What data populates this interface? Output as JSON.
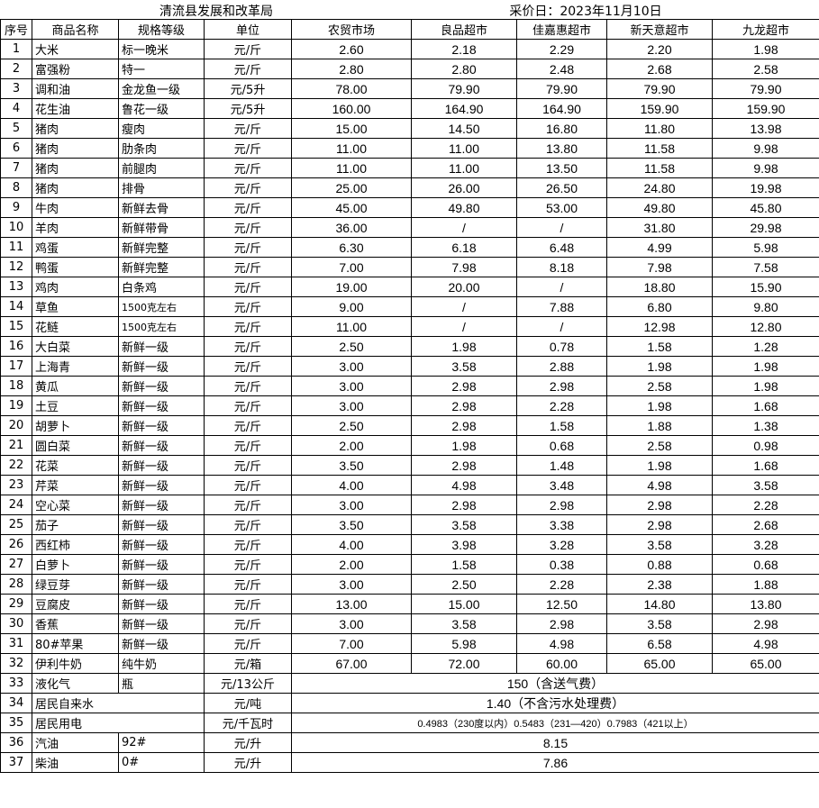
{
  "title": "清流县发展和改革局",
  "date_label": "采价日：2023年11月10日",
  "headers": [
    "序号",
    "商品名称",
    "规格等级",
    "单位",
    "农贸市场",
    "良品超市",
    "佳嘉惠超市",
    "新天意超市",
    "九龙超市"
  ],
  "rows": [
    [
      "1",
      "大米",
      "标一晚米",
      "元/斤",
      "2.60",
      "2.18",
      "2.29",
      "2.20",
      "1.98"
    ],
    [
      "2",
      "富强粉",
      "特一",
      "元/斤",
      "2.80",
      "2.80",
      "2.48",
      "2.68",
      "2.58"
    ],
    [
      "3",
      "调和油",
      "金龙鱼一级",
      "元/5升",
      "78.00",
      "79.90",
      "79.90",
      "79.90",
      "79.90"
    ],
    [
      "4",
      "花生油",
      "鲁花一级",
      "元/5升",
      "160.00",
      "164.90",
      "164.90",
      "159.90",
      "159.90"
    ],
    [
      "5",
      "猪肉",
      "瘦肉",
      "元/斤",
      "15.00",
      "14.50",
      "16.80",
      "11.80",
      "13.98"
    ],
    [
      "6",
      "猪肉",
      "肋条肉",
      "元/斤",
      "11.00",
      "11.00",
      "13.80",
      "11.58",
      "9.98"
    ],
    [
      "7",
      "猪肉",
      "前腿肉",
      "元/斤",
      "11.00",
      "11.00",
      "13.50",
      "11.58",
      "9.98"
    ],
    [
      "8",
      "猪肉",
      "排骨",
      "元/斤",
      "25.00",
      "26.00",
      "26.50",
      "24.80",
      "19.98"
    ],
    [
      "9",
      "牛肉",
      "新鲜去骨",
      "元/斤",
      "45.00",
      "49.80",
      "53.00",
      "49.80",
      "45.80"
    ],
    [
      "10",
      "羊肉",
      "新鲜带骨",
      "元/斤",
      "36.00",
      "/",
      "/",
      "31.80",
      "29.98"
    ],
    [
      "11",
      "鸡蛋",
      "新鲜完整",
      "元/斤",
      "6.30",
      "6.18",
      "6.48",
      "4.99",
      "5.98"
    ],
    [
      "12",
      "鸭蛋",
      "新鲜完整",
      "元/斤",
      "7.00",
      "7.98",
      "8.18",
      "7.98",
      "7.58"
    ],
    [
      "13",
      "鸡肉",
      "白条鸡",
      "元/斤",
      "19.00",
      "20.00",
      "/",
      "18.80",
      "15.90"
    ],
    [
      "14",
      "草鱼",
      "1500克左右",
      "元/斤",
      "9.00",
      "/",
      "7.88",
      "6.80",
      "9.80"
    ],
    [
      "15",
      "花鲢",
      "1500克左右",
      "元/斤",
      "11.00",
      "/",
      "/",
      "12.98",
      "12.80"
    ],
    [
      "16",
      "大白菜",
      "新鲜一级",
      "元/斤",
      "2.50",
      "1.98",
      "0.78",
      "1.58",
      "1.28"
    ],
    [
      "17",
      "上海青",
      "新鲜一级",
      "元/斤",
      "3.00",
      "3.58",
      "2.88",
      "1.98",
      "1.98"
    ],
    [
      "18",
      "黄瓜",
      "新鲜一级",
      "元/斤",
      "3.00",
      "2.98",
      "2.98",
      "2.58",
      "1.98"
    ],
    [
      "19",
      "土豆",
      "新鲜一级",
      "元/斤",
      "3.00",
      "2.98",
      "2.28",
      "1.98",
      "1.68"
    ],
    [
      "20",
      "胡萝卜",
      "新鲜一级",
      "元/斤",
      "2.50",
      "2.98",
      "1.58",
      "1.88",
      "1.38"
    ],
    [
      "21",
      "圆白菜",
      "新鲜一级",
      "元/斤",
      "2.00",
      "1.98",
      "0.68",
      "2.58",
      "0.98"
    ],
    [
      "22",
      "花菜",
      "新鲜一级",
      "元/斤",
      "3.50",
      "2.98",
      "1.48",
      "1.98",
      "1.68"
    ],
    [
      "23",
      "芹菜",
      "新鲜一级",
      "元/斤",
      "4.00",
      "4.98",
      "3.48",
      "4.98",
      "3.58"
    ],
    [
      "24",
      "空心菜",
      "新鲜一级",
      "元/斤",
      "3.00",
      "2.98",
      "2.98",
      "2.98",
      "2.28"
    ],
    [
      "25",
      "茄子",
      "新鲜一级",
      "元/斤",
      "3.50",
      "3.58",
      "3.38",
      "2.98",
      "2.68"
    ],
    [
      "26",
      "西红柿",
      "新鲜一级",
      "元/斤",
      "4.00",
      "3.98",
      "3.28",
      "3.58",
      "3.28"
    ],
    [
      "27",
      "白萝卜",
      "新鲜一级",
      "元/斤",
      "2.00",
      "1.58",
      "0.38",
      "0.88",
      "0.68"
    ],
    [
      "28",
      "绿豆芽",
      "新鲜一级",
      "元/斤",
      "3.00",
      "2.50",
      "2.28",
      "2.38",
      "1.88"
    ],
    [
      "29",
      "豆腐皮",
      "新鲜一级",
      "元/斤",
      "13.00",
      "15.00",
      "12.50",
      "14.80",
      "13.80"
    ],
    [
      "30",
      "香蕉",
      "新鲜一级",
      "元/斤",
      "3.00",
      "3.58",
      "2.98",
      "3.58",
      "2.98"
    ],
    [
      "31",
      "80#苹果",
      "新鲜一级",
      "元/斤",
      "7.00",
      "5.98",
      "4.98",
      "6.58",
      "4.98"
    ],
    [
      "32",
      "伊利牛奶",
      "纯牛奶",
      "元/箱",
      "67.00",
      "72.00",
      "60.00",
      "65.00",
      "65.00"
    ]
  ],
  "merged_rows": [
    {
      "no": "33",
      "name": "液化气",
      "spec": "瓶",
      "unit": "元/13公斤",
      "price": "150（含送气费）"
    },
    {
      "no": "34",
      "name": "居民自来水",
      "spec": "",
      "unit": "元/吨",
      "price": "1.40（不含污水处理费）"
    },
    {
      "no": "35",
      "name": "居民用电",
      "spec": "",
      "unit": "元/千瓦时",
      "price": "0.4983（230度以内）0.5483（231—420）0.7983（421以上）"
    },
    {
      "no": "36",
      "name": "汽油",
      "spec": "92#",
      "unit": "元/升",
      "price": "8.15"
    },
    {
      "no": "37",
      "name": "柴油",
      "spec": "0#",
      "unit": "元/升",
      "price": "7.86"
    }
  ]
}
